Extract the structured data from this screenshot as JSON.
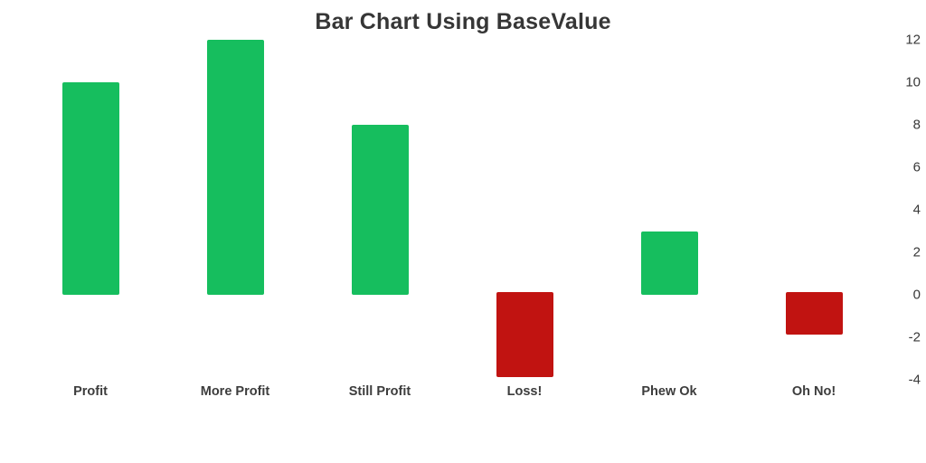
{
  "chart_data": {
    "type": "bar",
    "title": "Bar Chart Using BaseValue",
    "categories": [
      "Profit",
      "More Profit",
      "Still Profit",
      "Loss!",
      "Phew Ok",
      "Oh No!"
    ],
    "values": [
      10,
      12,
      8,
      -4,
      3,
      -2
    ],
    "base_value": 0,
    "y_ticks": [
      12,
      10,
      8,
      6,
      4,
      2,
      0,
      -2,
      -4
    ],
    "ylim": [
      -4,
      12
    ],
    "y_axis_position": "right",
    "xlabel": "",
    "ylabel": "",
    "grid": false,
    "legend": false,
    "colors": {
      "positive": "#16BE5E",
      "negative": "#C11311",
      "title_text": "#363636",
      "axis_text": "#3c3c3c",
      "background": "#ffffff"
    }
  }
}
